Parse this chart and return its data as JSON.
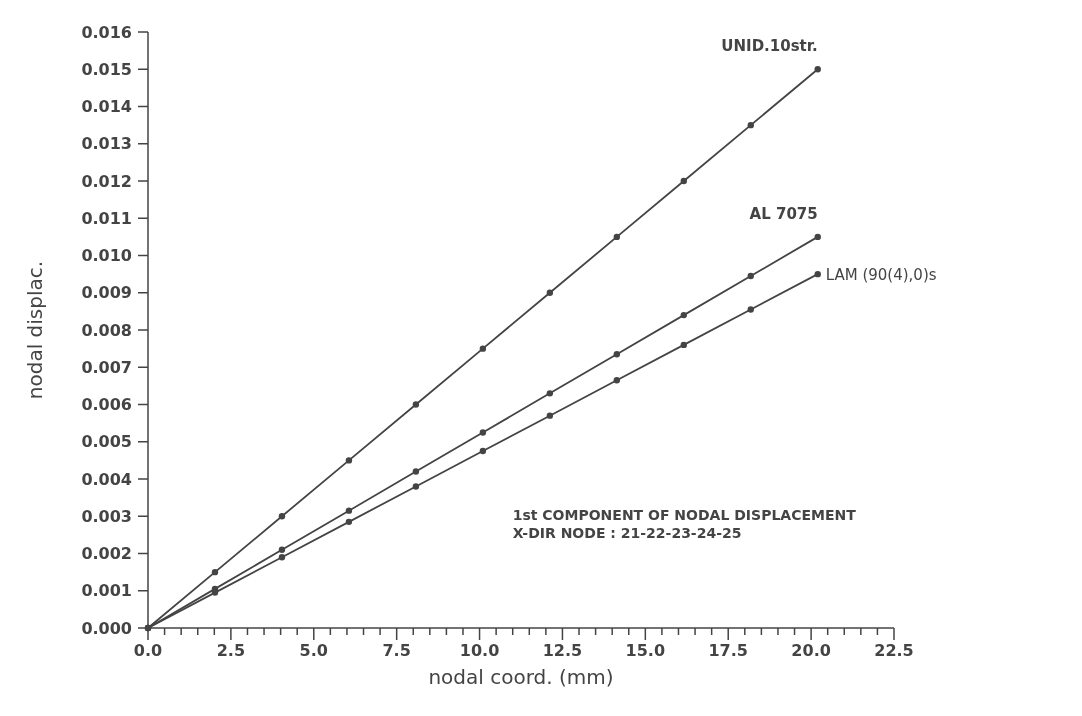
{
  "chart_data": {
    "type": "line",
    "xlabel": "nodal coord. (mm)",
    "ylabel": "nodal displac.",
    "x": [
      0,
      2.02,
      4.04,
      6.06,
      8.08,
      10.1,
      12.12,
      14.14,
      16.16,
      18.18,
      20.2
    ],
    "series": [
      {
        "name": "UNID.10str.",
        "color": "#444444",
        "values": [
          0,
          0.0015,
          0.003,
          0.0045,
          0.006,
          0.0075,
          0.009,
          0.0105,
          0.012,
          0.0135,
          0.015
        ]
      },
      {
        "name": "AL 7075",
        "color": "#444444",
        "values": [
          0,
          0.00105,
          0.0021,
          0.00315,
          0.0042,
          0.00525,
          0.0063,
          0.00735,
          0.0084,
          0.00945,
          0.0105
        ]
      },
      {
        "name": "LAM (90(4),0)s",
        "color": "#444444",
        "values": [
          0,
          0.00095,
          0.0019,
          0.00285,
          0.0038,
          0.00475,
          0.0057,
          0.00665,
          0.0076,
          0.00855,
          0.0095
        ]
      }
    ],
    "xlim": [
      0,
      22.5
    ],
    "xticks": [
      "0.0",
      {
        "value": 0.5,
        "label": null
      },
      {
        "value": 1,
        "label": null
      },
      {
        "value": 1.5,
        "label": null
      },
      {
        "value": 2,
        "label": null
      },
      {
        "value": 2.5,
        "label": "2.5"
      },
      {
        "value": 3,
        "label": null
      },
      {
        "value": 3.5,
        "label": null
      },
      {
        "value": 4,
        "label": null
      },
      {
        "value": 4.5,
        "label": null
      },
      {
        "value": 5,
        "label": "5.0"
      },
      {
        "value": 5.5,
        "label": null
      },
      {
        "value": 6,
        "label": null
      },
      {
        "value": 6.5,
        "label": null
      },
      {
        "value": 7,
        "label": null
      },
      {
        "value": 7.5,
        "label": "7.5"
      },
      {
        "value": 8,
        "label": null
      },
      {
        "value": 8.5,
        "label": null
      },
      {
        "value": 9,
        "label": null
      },
      {
        "value": 9.5,
        "label": null
      },
      {
        "value": 10,
        "label": "10.0"
      },
      {
        "value": 10.5,
        "label": null
      },
      {
        "value": 11,
        "label": null
      },
      {
        "value": 11.5,
        "label": null
      },
      {
        "value": 12,
        "label": null
      },
      {
        "value": 12.5,
        "label": "12.5"
      },
      {
        "value": 13,
        "label": null
      },
      {
        "value": 13.5,
        "label": null
      },
      {
        "value": 14,
        "label": null
      },
      {
        "value": 14.5,
        "label": null
      },
      {
        "value": 15,
        "label": "15.0"
      },
      {
        "value": 15.5,
        "label": null
      },
      {
        "value": 16,
        "label": null
      },
      {
        "value": 16.5,
        "label": null
      },
      {
        "value": 17,
        "label": null
      },
      {
        "value": 17.5,
        "label": "17.5"
      },
      {
        "value": 18,
        "label": null
      },
      {
        "value": 18.5,
        "label": null
      },
      {
        "value": 19,
        "label": null
      },
      {
        "value": 19.5,
        "label": null
      },
      {
        "value": 20,
        "label": "20.0"
      },
      {
        "value": 20.5,
        "label": null
      },
      {
        "value": 21,
        "label": null
      },
      {
        "value": 21.5,
        "label": null
      },
      {
        "value": 22,
        "label": null
      },
      {
        "value": 22.5,
        "label": "22.5"
      }
    ],
    "ylim": [
      0,
      0.016
    ],
    "yticks": [
      {
        "value": 0,
        "label": "0.000"
      },
      {
        "value": 0.001,
        "label": "0.001"
      },
      {
        "value": 0.002,
        "label": "0.002"
      },
      {
        "value": 0.003,
        "label": "0.003"
      },
      {
        "value": 0.004,
        "label": "0.004"
      },
      {
        "value": 0.005,
        "label": "0.005"
      },
      {
        "value": 0.006,
        "label": "0.006"
      },
      {
        "value": 0.007,
        "label": "0.007"
      },
      {
        "value": 0.008,
        "label": "0.008"
      },
      {
        "value": 0.009,
        "label": "0.009"
      },
      {
        "value": 0.01,
        "label": "0.010"
      },
      {
        "value": 0.011,
        "label": "0.011"
      },
      {
        "value": 0.012,
        "label": "0.012"
      },
      {
        "value": 0.013,
        "label": "0.013"
      },
      {
        "value": 0.014,
        "label": "0.014"
      },
      {
        "value": 0.015,
        "label": "0.015"
      },
      {
        "value": 0.016,
        "label": "0.016"
      }
    ],
    "grid": false,
    "marker": "circle",
    "line_style": "solid",
    "annotations": [
      "1st COMPONENT OF NODAL DISPLACEMENT",
      "X-DIR NODE : 21-22-23-24-25"
    ]
  }
}
